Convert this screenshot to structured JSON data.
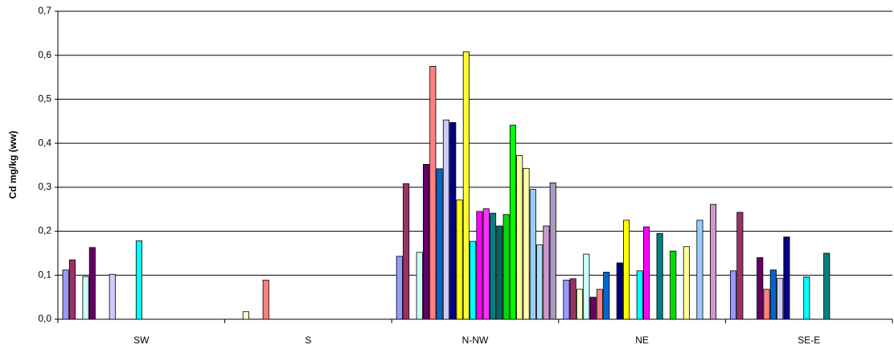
{
  "chart_data": {
    "type": "bar",
    "y_label": "Cd mg/kg (ww)",
    "categories": [
      "SW",
      "S",
      "N-NW",
      "NE",
      "SE-E"
    ],
    "ylim": [
      0,
      0.7
    ],
    "yticks": [
      {
        "value": 0,
        "label": "0,0"
      },
      {
        "value": 0.1,
        "label": "0,1"
      },
      {
        "value": 0.2,
        "label": "0,2"
      },
      {
        "value": 0.3,
        "label": "0,3"
      },
      {
        "value": 0.4,
        "label": "0,4"
      },
      {
        "value": 0.5,
        "label": "0,5"
      },
      {
        "value": 0.6,
        "label": "0,6"
      },
      {
        "value": 0.7,
        "label": "0,7"
      }
    ],
    "grid": true,
    "series": [
      {
        "color": "#9999ff",
        "values": [
          0.112,
          null,
          0.143,
          0.089,
          0.11
        ]
      },
      {
        "color": "#993366",
        "values": [
          0.135,
          null,
          0.308,
          0.092,
          0.243
        ]
      },
      {
        "color": "#ffffcc",
        "values": [
          null,
          0.017,
          null,
          0.068,
          null
        ]
      },
      {
        "color": "#ccffff",
        "values": [
          0.097,
          null,
          0.152,
          0.148,
          null
        ]
      },
      {
        "color": "#660066",
        "values": [
          0.163,
          null,
          0.352,
          0.05,
          0.14
        ]
      },
      {
        "color": "#ff8080",
        "values": [
          null,
          0.089,
          0.575,
          0.068,
          0.068
        ]
      },
      {
        "color": "#0066cc",
        "values": [
          null,
          null,
          0.342,
          0.107,
          0.112
        ]
      },
      {
        "color": "#ccccff",
        "values": [
          0.102,
          null,
          0.453,
          null,
          0.093
        ]
      },
      {
        "color": "#000080",
        "values": [
          null,
          null,
          0.447,
          0.128,
          0.187
        ]
      },
      {
        "color": "#ffff00",
        "values": [
          null,
          null,
          0.271,
          0.225,
          null
        ]
      },
      {
        "color": "#ffff33",
        "values": [
          null,
          null,
          0.608,
          null,
          null
        ]
      },
      {
        "color": "#00ffff",
        "values": [
          0.178,
          null,
          0.177,
          0.11,
          0.096
        ]
      },
      {
        "color": "#ff00ff",
        "values": [
          null,
          null,
          0.245,
          0.21,
          null
        ]
      },
      {
        "color": "#ff33ff",
        "values": [
          null,
          null,
          0.251,
          null,
          null
        ]
      },
      {
        "color": "#008080",
        "values": [
          null,
          null,
          0.241,
          0.195,
          0.15
        ]
      },
      {
        "color": "#006666",
        "values": [
          null,
          null,
          0.212,
          null,
          null
        ]
      },
      {
        "color": "#00dd00",
        "values": [
          null,
          null,
          0.238,
          0.155,
          null
        ]
      },
      {
        "color": "#00ff00",
        "values": [
          null,
          null,
          0.441,
          null,
          null
        ]
      },
      {
        "color": "#ffff99",
        "values": [
          null,
          null,
          0.372,
          0.165,
          null
        ]
      },
      {
        "color": "#ffffaa",
        "values": [
          null,
          null,
          0.343,
          null,
          null
        ]
      },
      {
        "color": "#99ccff",
        "values": [
          null,
          null,
          0.295,
          0.225,
          null
        ]
      },
      {
        "color": "#aaddff",
        "values": [
          null,
          null,
          0.169,
          null,
          null
        ]
      },
      {
        "color": "#cc99cc",
        "values": [
          null,
          null,
          0.212,
          0.261,
          null
        ]
      },
      {
        "color": "#aa99c0",
        "values": [
          null,
          null,
          0.31,
          null,
          null
        ]
      }
    ]
  }
}
